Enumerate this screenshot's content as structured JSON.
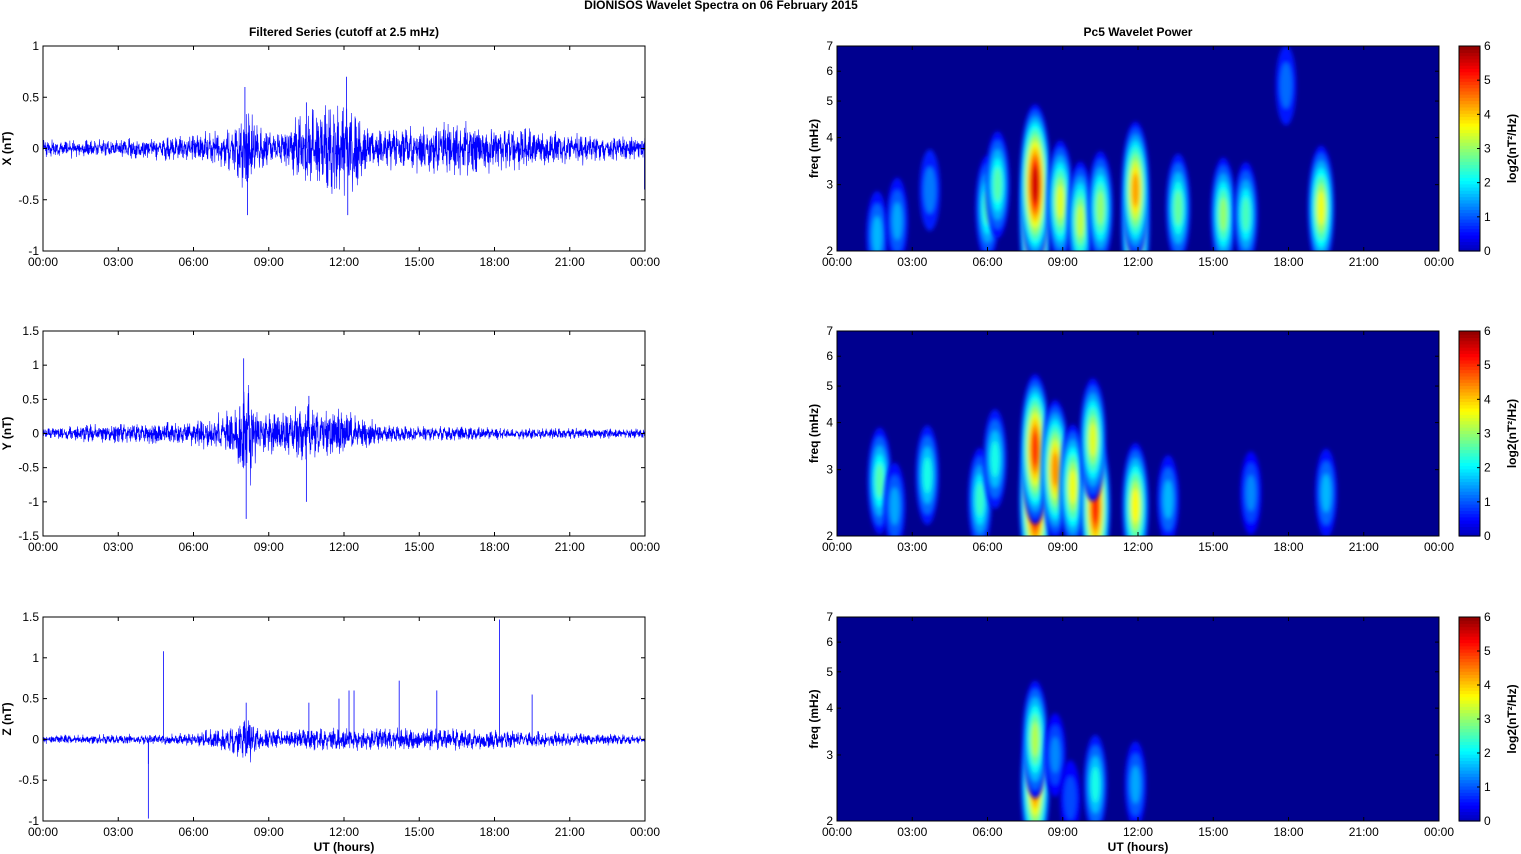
{
  "title": "DIONISOS Wavelet Spectra on 06 February  2015",
  "colors": {
    "trace": "#0000ff",
    "axis": "#000000",
    "background": "#00008f"
  },
  "chart_data": [
    {
      "type": "line",
      "panel": "X",
      "title": "Filtered Series (cutoff at 2.5 mHz)",
      "ylabel": "X (nT)",
      "xlabel": "",
      "xlim": [
        0,
        24
      ],
      "ylim": [
        -1,
        1
      ],
      "xticks": [
        "00:00",
        "03:00",
        "06:00",
        "09:00",
        "12:00",
        "15:00",
        "18:00",
        "21:00",
        "00:00"
      ],
      "yticks": [
        "-1",
        "-0.5",
        "0",
        "0.5",
        "1"
      ],
      "envelope": [
        {
          "t": 0,
          "amp": 0.1
        },
        {
          "t": 3,
          "amp": 0.1
        },
        {
          "t": 6,
          "amp": 0.15
        },
        {
          "t": 7.8,
          "amp": 0.3
        },
        {
          "t": 8.1,
          "amp": 0.6
        },
        {
          "t": 8.5,
          "amp": 0.3
        },
        {
          "t": 9.3,
          "amp": 0.15
        },
        {
          "t": 10.2,
          "amp": 0.4
        },
        {
          "t": 12.1,
          "amp": 0.55
        },
        {
          "t": 13,
          "amp": 0.2
        },
        {
          "t": 16.8,
          "amp": 0.3
        },
        {
          "t": 19.8,
          "amp": 0.2
        },
        {
          "t": 24,
          "amp": 0.12
        }
      ],
      "spikes": [
        {
          "t": 8.05,
          "y": 0.6
        },
        {
          "t": 8.15,
          "y": -0.65
        },
        {
          "t": 12.1,
          "y": 0.7
        },
        {
          "t": 12.15,
          "y": -0.65
        },
        {
          "t": 10.5,
          "y": 0.45
        },
        {
          "t": 23.98,
          "y": -0.4
        }
      ]
    },
    {
      "type": "line",
      "panel": "Y",
      "title": "",
      "ylabel": "Y (nT)",
      "xlabel": "",
      "xlim": [
        0,
        24
      ],
      "ylim": [
        -1.5,
        1.5
      ],
      "xticks": [
        "00:00",
        "03:00",
        "06:00",
        "09:00",
        "12:00",
        "15:00",
        "18:00",
        "21:00",
        "00:00"
      ],
      "yticks": [
        "-1.5",
        "-1",
        "-0.5",
        "0",
        "0.5",
        "1",
        "1.5"
      ],
      "envelope": [
        {
          "t": 0,
          "amp": 0.08
        },
        {
          "t": 1.5,
          "amp": 0.15
        },
        {
          "t": 6,
          "amp": 0.2
        },
        {
          "t": 7.6,
          "amp": 0.4
        },
        {
          "t": 8.1,
          "amp": 1.0
        },
        {
          "t": 8.6,
          "amp": 0.4
        },
        {
          "t": 9.5,
          "amp": 0.35
        },
        {
          "t": 10.5,
          "amp": 0.45
        },
        {
          "t": 12.1,
          "amp": 0.4
        },
        {
          "t": 13.5,
          "amp": 0.15
        },
        {
          "t": 18,
          "amp": 0.1
        },
        {
          "t": 24,
          "amp": 0.08
        }
      ],
      "spikes": [
        {
          "t": 8.0,
          "y": 1.1
        },
        {
          "t": 8.1,
          "y": -1.25
        },
        {
          "t": 10.5,
          "y": -1.0
        },
        {
          "t": 10.6,
          "y": 0.55
        }
      ]
    },
    {
      "type": "line",
      "panel": "Z",
      "title": "",
      "ylabel": "Z (nT)",
      "xlabel": "UT (hours)",
      "xlim": [
        0,
        24
      ],
      "ylim": [
        -1,
        1.5
      ],
      "xticks": [
        "00:00",
        "03:00",
        "06:00",
        "09:00",
        "12:00",
        "15:00",
        "18:00",
        "21:00",
        "00:00"
      ],
      "yticks": [
        "-1",
        "-0.5",
        "0",
        "0.5",
        "1",
        "1.5"
      ],
      "envelope": [
        {
          "t": 0,
          "amp": 0.06
        },
        {
          "t": 6,
          "amp": 0.08
        },
        {
          "t": 7.9,
          "amp": 0.25
        },
        {
          "t": 8.2,
          "amp": 0.4
        },
        {
          "t": 8.6,
          "amp": 0.15
        },
        {
          "t": 12,
          "amp": 0.15
        },
        {
          "t": 16.8,
          "amp": 0.15
        },
        {
          "t": 24,
          "amp": 0.06
        }
      ],
      "spikes": [
        {
          "t": 4.2,
          "y": -0.97
        },
        {
          "t": 4.2,
          "y": -0.3
        },
        {
          "t": 4.8,
          "y": 1.08
        },
        {
          "t": 8.1,
          "y": 0.45
        },
        {
          "t": 12.2,
          "y": 0.6
        },
        {
          "t": 12.4,
          "y": 0.6
        },
        {
          "t": 14.2,
          "y": 0.72
        },
        {
          "t": 15.7,
          "y": 0.6
        },
        {
          "t": 18.2,
          "y": 1.47
        },
        {
          "t": 19.5,
          "y": 0.55
        },
        {
          "t": 10.6,
          "y": 0.45
        },
        {
          "t": 11.8,
          "y": 0.5
        }
      ]
    },
    {
      "type": "heatmap",
      "panel": "X",
      "title": "Pc5 Wavelet Power",
      "ylabel": "freq (mHz)",
      "xlabel": "",
      "yscale": "log",
      "xlim": [
        0,
        24
      ],
      "ylim": [
        2,
        7
      ],
      "xticks": [
        "00:00",
        "03:00",
        "06:00",
        "09:00",
        "12:00",
        "15:00",
        "18:00",
        "21:00",
        "00:00"
      ],
      "yticks": [
        "2",
        "3",
        "4",
        "5",
        "6",
        "7"
      ],
      "clim": [
        0,
        6
      ],
      "colorbar_label": "log2(nT²/Hz)",
      "colorbar_ticks": [
        "0",
        "1",
        "2",
        "3",
        "4",
        "5",
        "6"
      ],
      "blobs": [
        {
          "t": 1.6,
          "f": 2.2,
          "v": 1.6
        },
        {
          "t": 2.4,
          "f": 2.4,
          "v": 1.5
        },
        {
          "t": 3.7,
          "f": 2.9,
          "v": 1.2
        },
        {
          "t": 6.0,
          "f": 2.6,
          "v": 2.5
        },
        {
          "t": 6.4,
          "f": 3.0,
          "v": 2.6
        },
        {
          "t": 7.9,
          "f": 2.4,
          "v": 5.8
        },
        {
          "t": 7.9,
          "f": 3.0,
          "v": 5.6
        },
        {
          "t": 8.9,
          "f": 2.7,
          "v": 3.5
        },
        {
          "t": 9.7,
          "f": 2.4,
          "v": 3.3
        },
        {
          "t": 10.5,
          "f": 2.6,
          "v": 3.0
        },
        {
          "t": 11.9,
          "f": 2.3,
          "v": 4.5
        },
        {
          "t": 11.9,
          "f": 2.9,
          "v": 4.3
        },
        {
          "t": 13.6,
          "f": 2.6,
          "v": 2.7
        },
        {
          "t": 15.4,
          "f": 2.5,
          "v": 3.0
        },
        {
          "t": 16.3,
          "f": 2.5,
          "v": 2.5
        },
        {
          "t": 19.3,
          "f": 2.6,
          "v": 3.6
        },
        {
          "t": 17.9,
          "f": 5.5,
          "v": 1.1
        }
      ]
    },
    {
      "type": "heatmap",
      "panel": "Y",
      "title": "",
      "ylabel": "freq (mHz)",
      "xlabel": "",
      "yscale": "log",
      "xlim": [
        0,
        24
      ],
      "ylim": [
        2,
        7
      ],
      "xticks": [
        "00:00",
        "03:00",
        "06:00",
        "09:00",
        "12:00",
        "15:00",
        "18:00",
        "21:00",
        "00:00"
      ],
      "yticks": [
        "2",
        "3",
        "4",
        "5",
        "6",
        "7"
      ],
      "clim": [
        0,
        6
      ],
      "colorbar_label": "log2(nT²/Hz)",
      "colorbar_ticks": [
        "0",
        "1",
        "2",
        "3",
        "4",
        "5",
        "6"
      ],
      "blobs": [
        {
          "t": 1.7,
          "f": 2.8,
          "v": 2.6
        },
        {
          "t": 2.3,
          "f": 2.4,
          "v": 1.5
        },
        {
          "t": 3.6,
          "f": 2.9,
          "v": 2.2
        },
        {
          "t": 5.7,
          "f": 2.5,
          "v": 2.4
        },
        {
          "t": 6.3,
          "f": 3.2,
          "v": 2.2
        },
        {
          "t": 7.9,
          "f": 2.5,
          "v": 6.0
        },
        {
          "t": 7.9,
          "f": 3.4,
          "v": 5.0
        },
        {
          "t": 8.7,
          "f": 3.0,
          "v": 4.4
        },
        {
          "t": 9.4,
          "f": 2.7,
          "v": 3.6
        },
        {
          "t": 10.3,
          "f": 2.4,
          "v": 5.1
        },
        {
          "t": 10.2,
          "f": 3.6,
          "v": 3.5
        },
        {
          "t": 11.9,
          "f": 2.4,
          "v": 3.7
        },
        {
          "t": 13.2,
          "f": 2.5,
          "v": 1.6
        },
        {
          "t": 16.5,
          "f": 2.6,
          "v": 1.3
        },
        {
          "t": 19.5,
          "f": 2.6,
          "v": 1.6
        }
      ]
    },
    {
      "type": "heatmap",
      "panel": "Z",
      "title": "",
      "ylabel": "freq (mHz)",
      "xlabel": "UT (hours)",
      "yscale": "log",
      "xlim": [
        0,
        24
      ],
      "ylim": [
        2,
        7
      ],
      "xticks": [
        "00:00",
        "03:00",
        "06:00",
        "09:00",
        "12:00",
        "15:00",
        "18:00",
        "21:00",
        "00:00"
      ],
      "yticks": [
        "2",
        "3",
        "4",
        "5",
        "6",
        "7"
      ],
      "clim": [
        0,
        6
      ],
      "colorbar_label": "log2(nT²/Hz)",
      "colorbar_ticks": [
        "0",
        "1",
        "2",
        "3",
        "4",
        "5",
        "6"
      ],
      "blobs": [
        {
          "t": 7.9,
          "f": 2.5,
          "v": 4.6
        },
        {
          "t": 7.9,
          "f": 3.3,
          "v": 3.2
        },
        {
          "t": 8.7,
          "f": 3.0,
          "v": 1.3
        },
        {
          "t": 10.3,
          "f": 2.5,
          "v": 2.2
        },
        {
          "t": 11.9,
          "f": 2.5,
          "v": 1.5
        },
        {
          "t": 9.3,
          "f": 2.3,
          "v": 0.9
        }
      ]
    }
  ]
}
